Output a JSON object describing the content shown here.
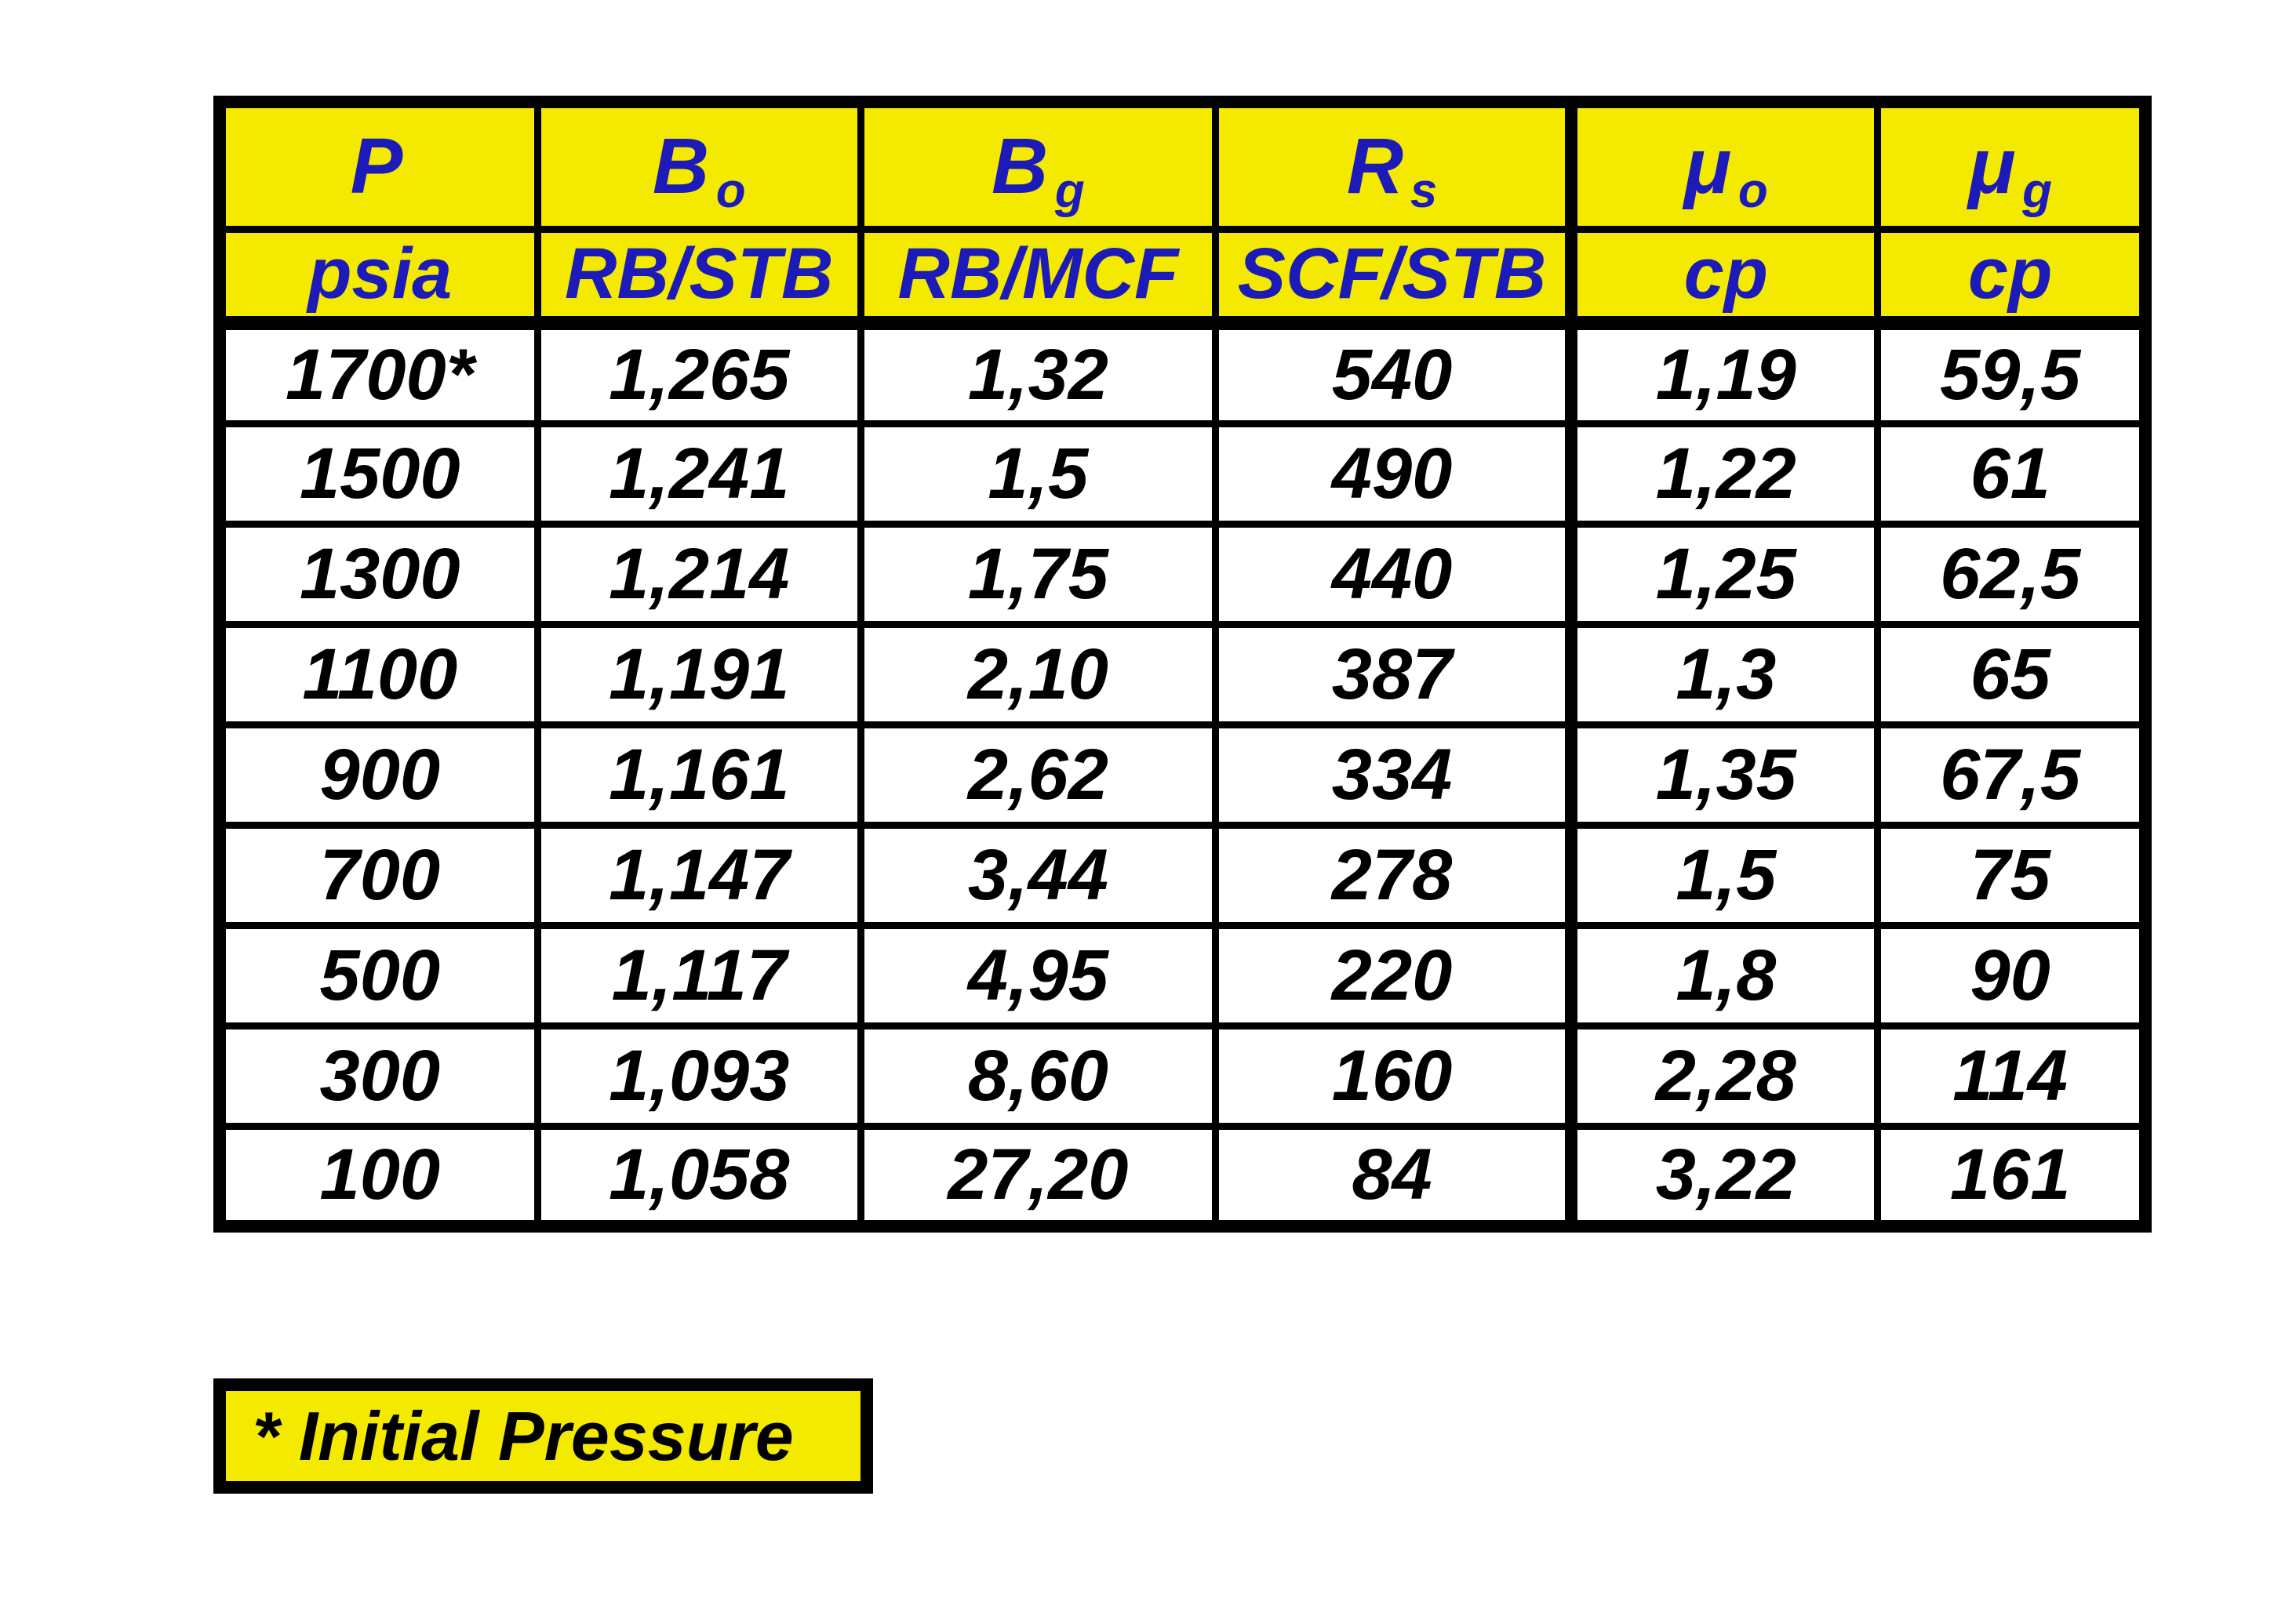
{
  "table": {
    "columns": [
      {
        "symbol": "P",
        "sub": "",
        "unit": "psia"
      },
      {
        "symbol": "B",
        "sub": "o",
        "unit": "RB/STB"
      },
      {
        "symbol": "B",
        "sub": "g",
        "unit": "RB/MCF"
      },
      {
        "symbol": "R",
        "sub": "s",
        "unit": "SCF/STB"
      },
      {
        "symbol": "μ",
        "sub": "o",
        "unit": "cp"
      },
      {
        "symbol": "μ",
        "sub": "g",
        "unit": "cp"
      }
    ],
    "rows": [
      [
        "1700*",
        "1,265",
        "1,32",
        "540",
        "1,19",
        "59,5"
      ],
      [
        "1500",
        "1,241",
        "1,5",
        "490",
        "1,22",
        "61"
      ],
      [
        "1300",
        "1,214",
        "1,75",
        "440",
        "1,25",
        "62,5"
      ],
      [
        "1100",
        "1,191",
        "2,10",
        "387",
        "1,3",
        "65"
      ],
      [
        "900",
        "1,161",
        "2,62",
        "334",
        "1,35",
        "67,5"
      ],
      [
        "700",
        "1,147",
        "3,44",
        "278",
        "1,5",
        "75"
      ],
      [
        "500",
        "1,117",
        "4,95",
        "220",
        "1,8",
        "90"
      ],
      [
        "300",
        "1,093",
        "8,60",
        "160",
        "2,28",
        "114"
      ],
      [
        "100",
        "1,058",
        "27,20",
        "84",
        "3,22",
        "161"
      ]
    ]
  },
  "footnote": {
    "label": "* Initial Pressure"
  },
  "colors": {
    "header_background": "#f3ea00",
    "header_text": "#1c1ab8",
    "data_text": "#000000",
    "border": "#000000",
    "page_background": "#ffffff"
  }
}
